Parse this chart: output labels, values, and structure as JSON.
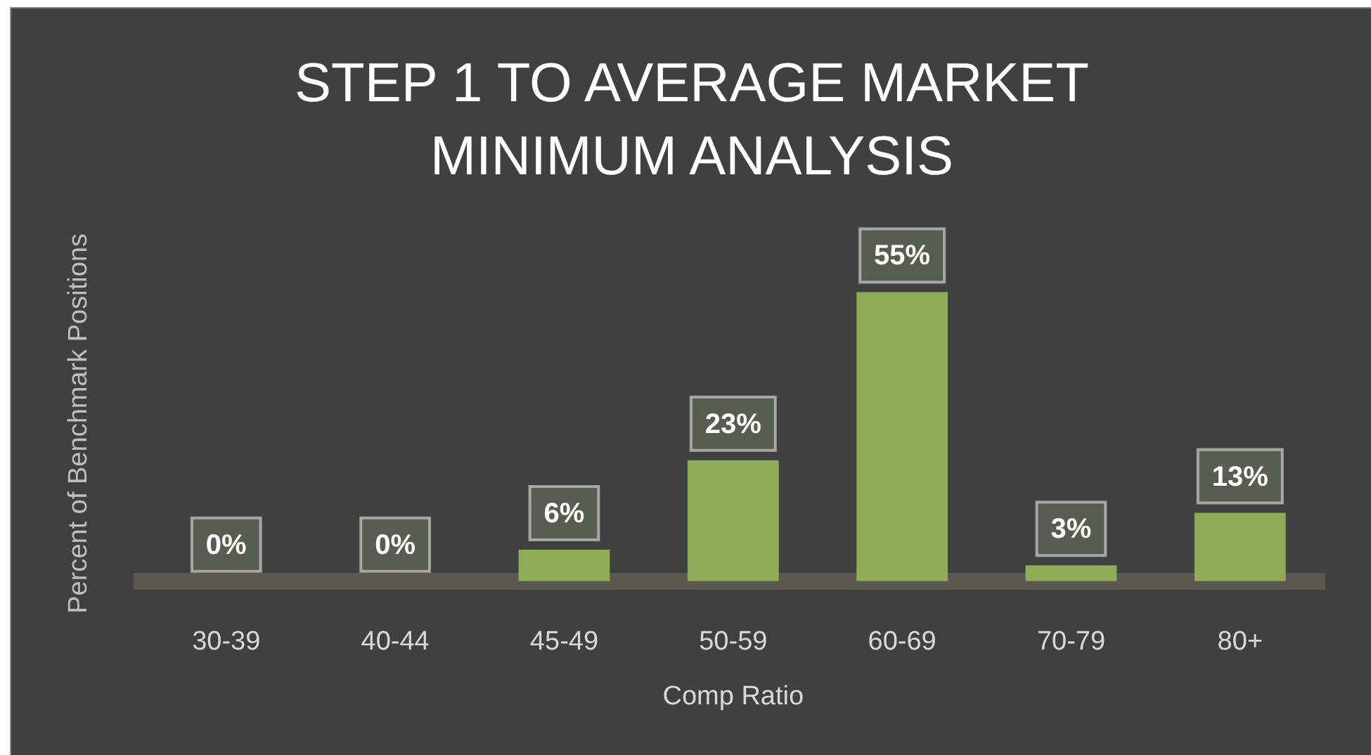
{
  "chart_data": {
    "type": "bar",
    "title": "STEP 1 TO AVERAGE MARKET MINIMUM ANALYSIS",
    "xlabel": "Comp Ratio",
    "ylabel": "Percent of Benchmark Positions",
    "categories": [
      "30-39",
      "40-44",
      "45-49",
      "50-59",
      "60-69",
      "70-79",
      "80+"
    ],
    "values": [
      0,
      0,
      6,
      23,
      55,
      3,
      13
    ],
    "color": "#8fac57",
    "value_labels": [
      "0%",
      "0%",
      "6%",
      "23%",
      "55%",
      "3%",
      "13%"
    ],
    "tick_labels": "x"
  }
}
